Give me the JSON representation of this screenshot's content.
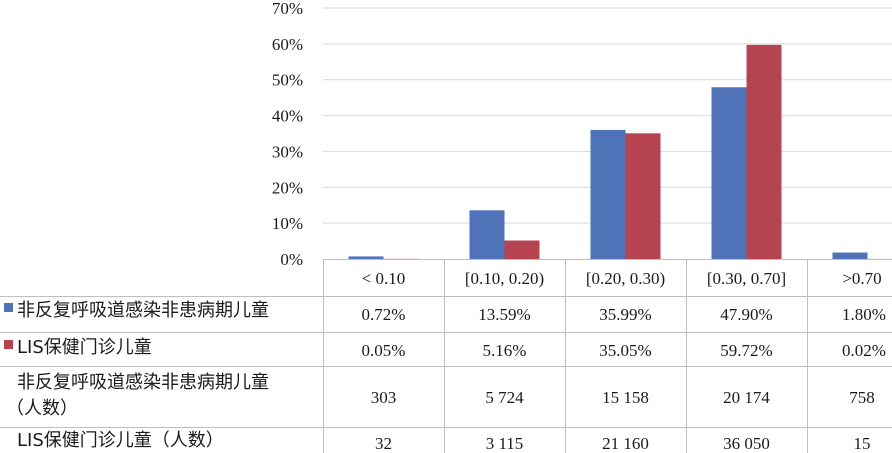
{
  "chart_data": {
    "type": "bar",
    "categories": [
      "< 0.10",
      "[0.10, 0.20)",
      "[0.20, 0.30)",
      "[0.30, 0.70]",
      ">0.70"
    ],
    "ylim": [
      0,
      70
    ],
    "y_ticks": [
      "0%",
      "10%",
      "20%",
      "30%",
      "40%",
      "50%",
      "60%",
      "70%"
    ],
    "grid": true,
    "series": [
      {
        "name": "非反复呼吸道感染非患病期儿童",
        "color": "#4f72b8",
        "values": [
          0.72,
          13.59,
          35.99,
          47.9,
          1.8
        ],
        "labels": [
          "0.72%",
          "13.59%",
          "35.99%",
          "47.90%",
          "1.80%"
        ],
        "counts_label": "非反复呼吸道感染非患病期儿童（人数）",
        "counts": [
          "303",
          "5 724",
          "15 158",
          "20 174",
          "758"
        ]
      },
      {
        "name": "LIS保健门诊儿童",
        "color": "#b54350",
        "values": [
          0.05,
          5.16,
          35.05,
          59.72,
          0.02
        ],
        "labels": [
          "0.05%",
          "5.16%",
          "35.05%",
          "59.72%",
          "0.02%"
        ],
        "counts_label": "LIS保健门诊儿童（人数）",
        "counts": [
          "32",
          "3 115",
          "21 160",
          "36 050",
          "15"
        ]
      }
    ]
  }
}
